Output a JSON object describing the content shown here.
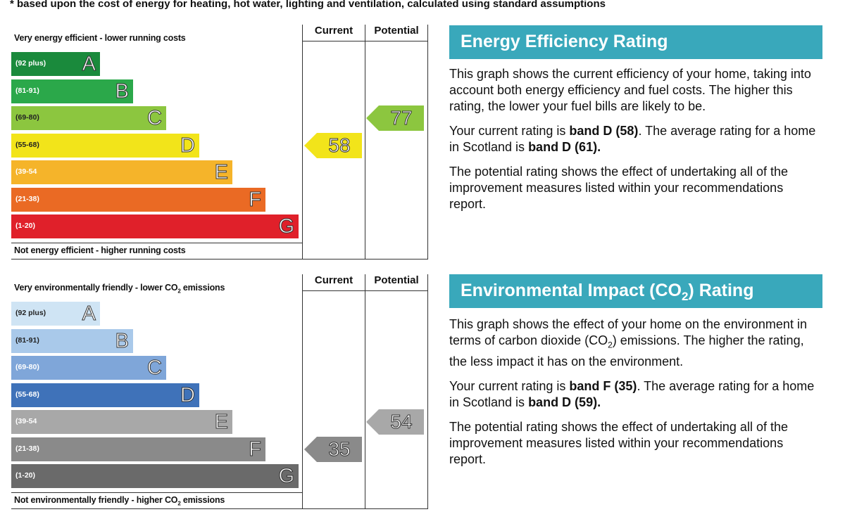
{
  "top_note": "based upon the cost of energy for heating, hot water, lighting and ventilation, calculated using standard assumptions",
  "energy": {
    "top_label": "Very energy efficient - lower running costs",
    "bottom_label": "Not energy efficient - higher running costs",
    "current_label": "Current",
    "potential_label": "Potential",
    "panel_title": "Energy Efficiency Rating",
    "p1": "This graph shows the current efficiency of your home, taking into account both energy efficiency and fuel costs. The higher this rating, the lower your fuel bills are likely to be.",
    "p2_a": "Your current rating is ",
    "p2_b": "band D (58)",
    "p2_c": ". The average rating for a home in Scotland is ",
    "p2_d": "band D (61).",
    "p3": "The potential rating shows the effect of undertaking all of the improvement measures listed within your recommendations report."
  },
  "environment": {
    "top_label_a": "Very environmentally friendly - lower CO",
    "top_label_sub": "2",
    "top_label_b": " emissions",
    "bottom_label_a": "Not environmentally friendly - higher CO",
    "bottom_label_sub": "2",
    "bottom_label_b": " emissions",
    "current_label": "Current",
    "potential_label": "Potential",
    "panel_title_a": "Environmental Impact (CO",
    "panel_title_sub": "2",
    "panel_title_b": ") Rating",
    "p1_a": "This graph shows the effect of your home on the environment in terms of carbon dioxide (CO",
    "p1_sub": "2",
    "p1_b": ") emissions. The higher the rating, the less impact it has on the environment.",
    "p2_a": "Your current rating is ",
    "p2_b": "band F (35)",
    "p2_c": ". The average rating for a home in Scotland is ",
    "p2_d": "band D (59).",
    "p3": "The potential rating shows the effect of undertaking all of the improvement measures listed within your recommendations report."
  },
  "chart_data": [
    {
      "type": "bar",
      "title": "Energy Efficiency Rating",
      "bands": [
        {
          "letter": "A",
          "range": "(92 plus)",
          "color": "#1a8a3c"
        },
        {
          "letter": "B",
          "range": "(81-91)",
          "color": "#2ba84a"
        },
        {
          "letter": "C",
          "range": "(69-80)",
          "color": "#8cc63f"
        },
        {
          "letter": "D",
          "range": "(55-68)",
          "color": "#f2e41a"
        },
        {
          "letter": "E",
          "range": "(39-54",
          "color": "#f5b42a"
        },
        {
          "letter": "F",
          "range": "(21-38)",
          "color": "#ea6a24"
        },
        {
          "letter": "G",
          "range": "(1-20)",
          "color": "#e0202a"
        }
      ],
      "current": {
        "value": 58,
        "band": "D",
        "color": "#f2e41a"
      },
      "potential": {
        "value": 77,
        "band": "C",
        "color": "#8cc63f"
      }
    },
    {
      "type": "bar",
      "title": "Environmental Impact (CO2) Rating",
      "bands": [
        {
          "letter": "A",
          "range": "(92 plus)",
          "color": "#cfe4f4"
        },
        {
          "letter": "B",
          "range": "(81-91)",
          "color": "#a9c9ea"
        },
        {
          "letter": "C",
          "range": "(69-80)",
          "color": "#7fa6d9"
        },
        {
          "letter": "D",
          "range": "(55-68)",
          "color": "#3f72b9"
        },
        {
          "letter": "E",
          "range": "(39-54",
          "color": "#a8a8a8"
        },
        {
          "letter": "F",
          "range": "(21-38)",
          "color": "#8a8a8a"
        },
        {
          "letter": "G",
          "range": "(1-20)",
          "color": "#6a6a6a"
        }
      ],
      "current": {
        "value": 35,
        "band": "F",
        "color": "#8a8a8a"
      },
      "potential": {
        "value": 54,
        "band": "E",
        "color": "#a8a8a8"
      }
    }
  ]
}
